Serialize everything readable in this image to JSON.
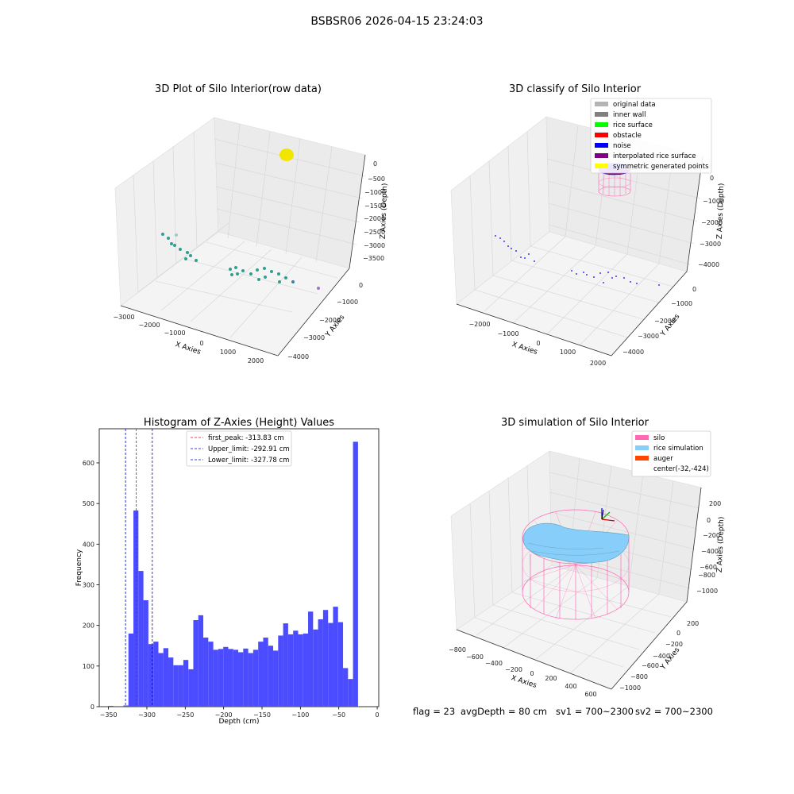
{
  "figure_title": "BSBSR06 2026-04-15 23:24:03",
  "footer": {
    "flag": "flag = 23",
    "avg_depth": "avgDepth = 80 cm",
    "sv1": "sv1 = 700~2300",
    "sv2": "sv2 = 700~2300"
  },
  "colors": {
    "histogram_bar": "#4b4bff",
    "first_peak_line": "#ff0000",
    "limit_lines": "#0000cc",
    "raw_points": "#2f9f91",
    "raw_top_cluster": "#f2e600",
    "noise_points": "#0000ff",
    "silo": "#ff69b4",
    "rice_simulation": "#87cefa",
    "auger": "#ff4500",
    "legend_bg": "#ffffff"
  },
  "chart_data": [
    {
      "type": "scatter",
      "title": "3D Plot of Silo Interior(row data)",
      "projection": "3d",
      "xlabel": "X Axies",
      "ylabel": "Y Axies",
      "zlabel": "Z Axies (Depth)",
      "x_ticks": [
        "−3000",
        "−2000",
        "−1000",
        "0",
        "1000",
        "2000"
      ],
      "y_ticks": [
        "0",
        "−1000",
        "−2000",
        "−3000",
        "−4000"
      ],
      "z_ticks": [
        "0",
        "−500",
        "−1000",
        "−1500",
        "−2000",
        "−2500",
        "−3000",
        "−3500"
      ],
      "grid": true
    },
    {
      "type": "scatter",
      "title": "3D classify of Silo Interior",
      "projection": "3d",
      "xlabel": "X Axies",
      "ylabel": "Y Axies",
      "zlabel": "Z Axies (Depth)",
      "x_ticks": [
        "−2000",
        "−1000",
        "0",
        "1000",
        "2000"
      ],
      "y_ticks": [
        "0",
        "−1000",
        "−2000",
        "−3000",
        "−4000"
      ],
      "z_ticks": [
        "0",
        "−1000",
        "−2000",
        "−3000",
        "−4000"
      ],
      "grid": true,
      "legend": {
        "placement": "top-right",
        "entries": [
          {
            "label": "original data",
            "color": "#b4b4b4"
          },
          {
            "label": "inner wall",
            "color": "#808080"
          },
          {
            "label": "rice surface",
            "color": "#00ff00"
          },
          {
            "label": "obstacle",
            "color": "#ff0000"
          },
          {
            "label": "noise",
            "color": "#0000ff"
          },
          {
            "label": "interpolated rice surface",
            "color": "#800080"
          },
          {
            "label": "symmetric generated points",
            "color": "#ffff00"
          }
        ]
      }
    },
    {
      "type": "bar",
      "title": "Histogram of Z-Axies (Height) Values",
      "xlabel": "Depth (cm)",
      "ylabel": "Frequency",
      "xlim": [
        -362,
        2
      ],
      "ylim": [
        0,
        684
      ],
      "x_ticks": [
        -350,
        -300,
        -250,
        -200,
        -150,
        -100,
        -50,
        0
      ],
      "y_ticks": [
        0,
        100,
        200,
        300,
        400,
        500,
        600
      ],
      "bin_width": 6.5,
      "bins": [
        {
          "x": -350,
          "value": 2
        },
        {
          "x": -343.5,
          "value": 0
        },
        {
          "x": -337,
          "value": 0
        },
        {
          "x": -330.5,
          "value": 3
        },
        {
          "x": -324,
          "value": 180
        },
        {
          "x": -317.5,
          "value": 483
        },
        {
          "x": -311,
          "value": 334
        },
        {
          "x": -304.5,
          "value": 262
        },
        {
          "x": -298,
          "value": 154
        },
        {
          "x": -291.5,
          "value": 160
        },
        {
          "x": -285,
          "value": 132
        },
        {
          "x": -278.5,
          "value": 144
        },
        {
          "x": -272,
          "value": 121
        },
        {
          "x": -265.5,
          "value": 102
        },
        {
          "x": -259,
          "value": 102
        },
        {
          "x": -252.5,
          "value": 115
        },
        {
          "x": -246,
          "value": 92
        },
        {
          "x": -239.5,
          "value": 213
        },
        {
          "x": -233,
          "value": 225
        },
        {
          "x": -226.5,
          "value": 170
        },
        {
          "x": -220,
          "value": 160
        },
        {
          "x": -213.5,
          "value": 140
        },
        {
          "x": -207,
          "value": 142
        },
        {
          "x": -200.5,
          "value": 147
        },
        {
          "x": -194,
          "value": 142
        },
        {
          "x": -187.5,
          "value": 140
        },
        {
          "x": -181,
          "value": 134
        },
        {
          "x": -174.5,
          "value": 143
        },
        {
          "x": -168,
          "value": 132
        },
        {
          "x": -161.5,
          "value": 140
        },
        {
          "x": -155,
          "value": 160
        },
        {
          "x": -148.5,
          "value": 170
        },
        {
          "x": -142,
          "value": 150
        },
        {
          "x": -135.5,
          "value": 138
        },
        {
          "x": -129,
          "value": 175
        },
        {
          "x": -122.5,
          "value": 205
        },
        {
          "x": -116,
          "value": 178
        },
        {
          "x": -109.5,
          "value": 187
        },
        {
          "x": -103,
          "value": 178
        },
        {
          "x": -96.5,
          "value": 180
        },
        {
          "x": -90,
          "value": 234
        },
        {
          "x": -83.5,
          "value": 190
        },
        {
          "x": -77,
          "value": 215
        },
        {
          "x": -70.5,
          "value": 238
        },
        {
          "x": -64,
          "value": 206
        },
        {
          "x": -57.5,
          "value": 246
        },
        {
          "x": -51,
          "value": 208
        },
        {
          "x": -44.5,
          "value": 95
        },
        {
          "x": -38,
          "value": 68
        },
        {
          "x": -31.5,
          "value": 652
        }
      ],
      "vlines": [
        {
          "x": -313.83,
          "label": "first_peak: -313.83 cm",
          "kind": "first_peak"
        },
        {
          "x": -292.91,
          "label": "Upper_limit: -292.91 cm",
          "kind": "limit"
        },
        {
          "x": -327.78,
          "label": "Lower_limit: -327.78 cm",
          "kind": "limit"
        }
      ],
      "legend_placement": "top-center"
    },
    {
      "type": "surface",
      "title": "3D simulation of Silo Interior",
      "projection": "3d",
      "xlabel": "X Axies",
      "ylabel": "Y Axies",
      "zlabel": "Z Axies (Depth)",
      "x_ticks": [
        "−800",
        "−600",
        "−400",
        "−200",
        "0",
        "200",
        "400",
        "600"
      ],
      "y_ticks": [
        "200",
        "0",
        "−200",
        "−400",
        "−600",
        "−800",
        "−1000"
      ],
      "z_ticks": [
        "200",
        "0",
        "−200",
        "−400",
        "−600",
        "−800",
        "−1000"
      ],
      "grid": true,
      "legend": {
        "placement": "top-right",
        "entries": [
          {
            "label": "silo",
            "color": "#ff69b4"
          },
          {
            "label": "rice simulation",
            "color": "#87cefa"
          },
          {
            "label": "auger",
            "color": "#ff4500"
          },
          {
            "label": "center(-32,-424)",
            "color": ""
          }
        ]
      }
    }
  ]
}
